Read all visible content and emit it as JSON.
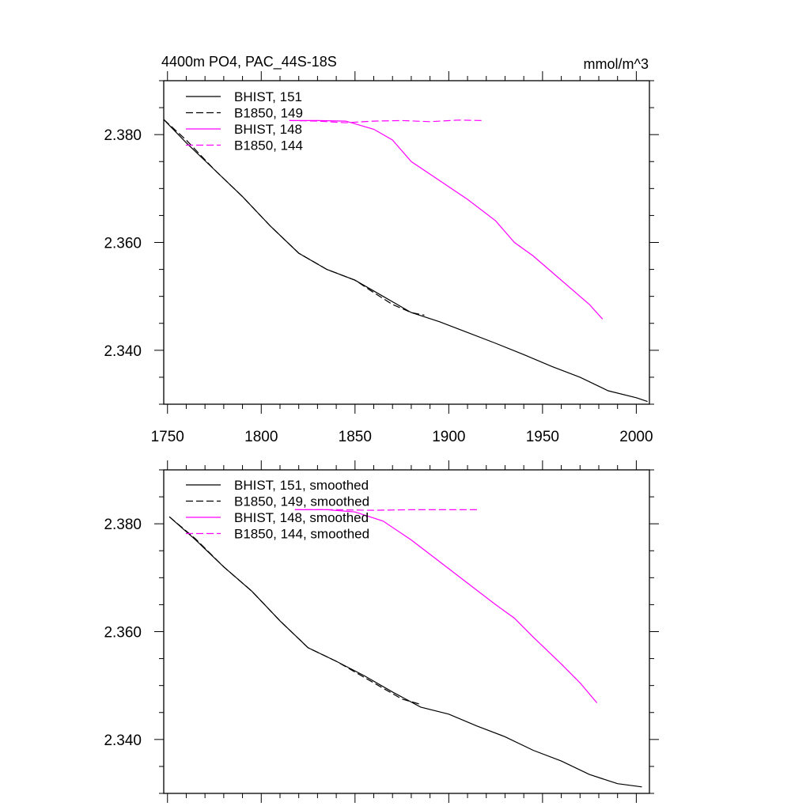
{
  "chart_data": [
    {
      "type": "line",
      "title": "4400m PO4, PAC_44S-18S",
      "units": "mmol/m^3",
      "xlim": [
        1748,
        2007
      ],
      "ylim": [
        2.33,
        2.39
      ],
      "xticks": [
        1750,
        1800,
        1850,
        1900,
        1950,
        2000
      ],
      "xtick_labels": [
        "1750",
        "1800",
        "1850",
        "1900",
        "1950",
        "2000"
      ],
      "yticks": [
        2.34,
        2.36,
        2.38
      ],
      "ytick_labels": [
        "2.340",
        "2.360",
        "2.380"
      ],
      "legend_position": "top-left",
      "series": [
        {
          "name": "BHIST, 151",
          "color": "#000000",
          "dash": "solid",
          "x": [
            1748,
            1760,
            1775,
            1790,
            1805,
            1820,
            1835,
            1850,
            1865,
            1880,
            1895,
            1910,
            1925,
            1940,
            1955,
            1970,
            1985,
            2000,
            2006
          ],
          "y": [
            2.3828,
            2.3785,
            2.3735,
            2.3685,
            2.363,
            2.358,
            2.355,
            2.353,
            2.35,
            2.347,
            2.3453,
            2.3433,
            2.3413,
            2.3392,
            2.337,
            2.335,
            2.3325,
            2.3312,
            2.3305
          ]
        },
        {
          "name": "B1850, 149",
          "color": "#000000",
          "dash": "dashed",
          "x": [
            1748,
            1760,
            1775,
            1790,
            1805,
            1820,
            1835,
            1850,
            1860,
            1870,
            1880,
            1887
          ],
          "y": [
            2.3828,
            2.379,
            2.3735,
            2.3685,
            2.363,
            2.358,
            2.355,
            2.353,
            2.3507,
            2.3485,
            2.347,
            2.3465
          ]
        },
        {
          "name": "BHIST, 148",
          "color": "#ff00ff",
          "dash": "solid",
          "x": [
            1815,
            1830,
            1845,
            1860,
            1870,
            1880,
            1895,
            1910,
            1925,
            1935,
            1945,
            1955,
            1965,
            1975,
            1982
          ],
          "y": [
            2.3826,
            2.3826,
            2.3825,
            2.381,
            2.379,
            2.375,
            2.3715,
            2.368,
            2.364,
            2.36,
            2.3575,
            2.3545,
            2.3515,
            2.3485,
            2.3458
          ]
        },
        {
          "name": "B1850, 144",
          "color": "#ff00ff",
          "dash": "dashed",
          "x": [
            1815,
            1830,
            1845,
            1860,
            1875,
            1890,
            1905,
            1918
          ],
          "y": [
            2.3826,
            2.3825,
            2.3822,
            2.3825,
            2.3826,
            2.3824,
            2.3827,
            2.3826
          ]
        }
      ]
    },
    {
      "type": "line",
      "title": "",
      "xlim": [
        1748,
        2007
      ],
      "ylim": [
        2.33,
        2.39
      ],
      "xticks": [
        1750,
        1800,
        1850,
        1900,
        1950,
        2000
      ],
      "yticks": [
        2.34,
        2.36,
        2.38
      ],
      "ytick_labels": [
        "2.340",
        "2.360",
        "2.380"
      ],
      "legend_position": "top-left",
      "series": [
        {
          "name": "BHIST, 151, smoothed",
          "color": "#000000",
          "dash": "solid",
          "x": [
            1751,
            1765,
            1780,
            1795,
            1810,
            1825,
            1840,
            1855,
            1870,
            1885,
            1900,
            1915,
            1930,
            1945,
            1960,
            1975,
            1990,
            2003
          ],
          "y": [
            2.3813,
            2.377,
            2.372,
            2.3675,
            2.362,
            2.357,
            2.3545,
            2.3518,
            2.3488,
            2.346,
            2.3447,
            2.3425,
            2.3405,
            2.338,
            2.336,
            2.3335,
            2.3318,
            2.3312
          ]
        },
        {
          "name": "B1850, 149, smoothed",
          "color": "#000000",
          "dash": "dashed",
          "x": [
            1751,
            1765,
            1780,
            1795,
            1810,
            1825,
            1840,
            1855,
            1865,
            1875,
            1885
          ],
          "y": [
            2.3813,
            2.3772,
            2.372,
            2.3675,
            2.362,
            2.357,
            2.3545,
            2.3515,
            2.3495,
            2.3475,
            2.3465
          ]
        },
        {
          "name": "BHIST, 148, smoothed",
          "color": "#ff00ff",
          "dash": "solid",
          "x": [
            1818,
            1835,
            1850,
            1865,
            1880,
            1895,
            1910,
            1925,
            1935,
            1945,
            1960,
            1970,
            1979
          ],
          "y": [
            2.3826,
            2.3826,
            2.3822,
            2.3805,
            2.377,
            2.373,
            2.369,
            2.365,
            2.3625,
            2.359,
            2.354,
            2.3505,
            2.3468
          ]
        },
        {
          "name": "B1850, 144, smoothed",
          "color": "#ff00ff",
          "dash": "dashed",
          "x": [
            1818,
            1840,
            1860,
            1880,
            1900,
            1915
          ],
          "y": [
            2.3826,
            2.3826,
            2.3825,
            2.3826,
            2.3826,
            2.3826
          ]
        }
      ]
    }
  ]
}
